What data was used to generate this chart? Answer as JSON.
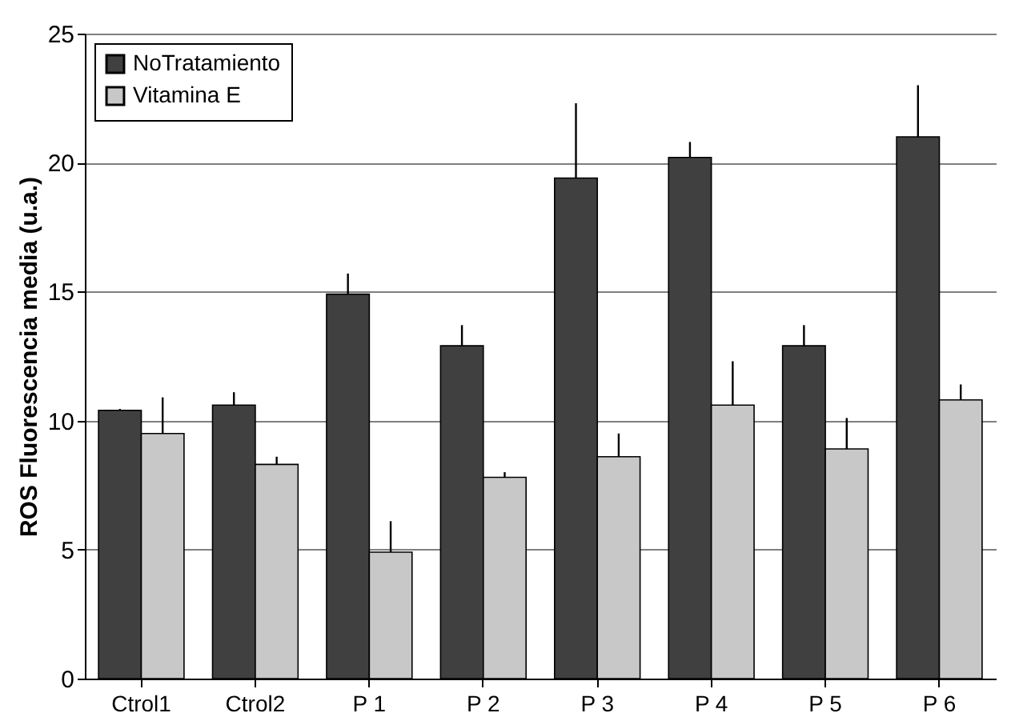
{
  "chart_data": {
    "type": "bar",
    "ylabel": "ROS Fluorescencia media (u.a.)",
    "categories": [
      "Ctrol1",
      "Ctrol2",
      "P 1",
      "P 2",
      "P 3",
      "P 4",
      "P 5",
      "P 6"
    ],
    "series": [
      {
        "name": "NoTratamiento",
        "color": "#404040",
        "values": [
          10.4,
          10.6,
          14.9,
          12.9,
          19.4,
          20.2,
          12.9,
          21.0
        ],
        "errors": [
          [
            10.4,
            10.45
          ],
          [
            10.6,
            11.1
          ],
          [
            14.9,
            15.7
          ],
          [
            12.9,
            13.7
          ],
          [
            19.4,
            22.3
          ],
          [
            20.2,
            20.8
          ],
          [
            12.9,
            13.7
          ],
          [
            21.0,
            23.0
          ]
        ]
      },
      {
        "name": "Vitamina E",
        "color": "#c8c8c8",
        "values": [
          9.5,
          8.3,
          4.9,
          7.8,
          8.6,
          10.6,
          8.9,
          10.8
        ],
        "errors": [
          [
            9.5,
            10.9
          ],
          [
            8.3,
            8.6
          ],
          [
            4.9,
            6.1
          ],
          [
            7.8,
            8.0
          ],
          [
            8.6,
            9.5
          ],
          [
            10.6,
            12.3
          ],
          [
            8.9,
            10.1
          ],
          [
            10.8,
            11.4
          ]
        ]
      }
    ],
    "ylim": [
      0,
      25
    ],
    "yticks": [
      0,
      5,
      10,
      15,
      20,
      25
    ],
    "grid": "y",
    "legend": "top left"
  }
}
